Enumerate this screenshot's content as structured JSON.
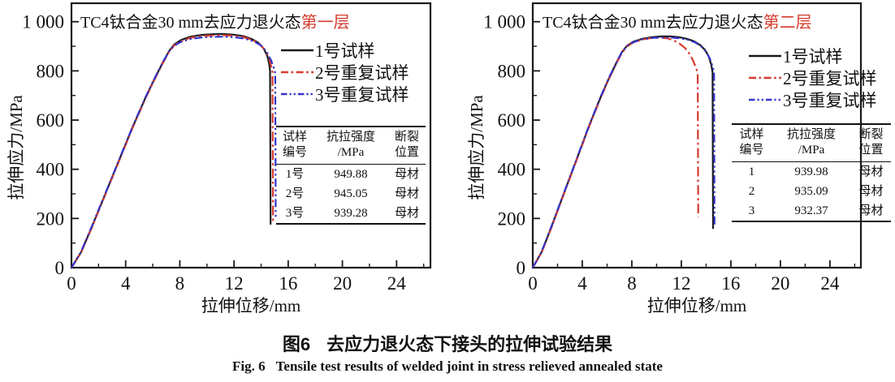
{
  "figure": {
    "caption_cn": {
      "label": "图6",
      "text": "去应力退火态下接头的拉伸试验结果"
    },
    "caption_en": {
      "label": "Fig. 6",
      "text": "Tensile test results of welded joint in stress relieved annealed state"
    }
  },
  "colors": {
    "black": "#1a1a1a",
    "red": "#d43a2e",
    "blue": "#3434cb",
    "frame": "#1a1a1a",
    "title_highlight": "#d43a2e"
  },
  "chart_data": [
    {
      "type": "line",
      "title_main": "TC4钛合金30 mm去应力退火态",
      "title_highlight": "第一层",
      "xlabel": "拉伸位移/mm",
      "ylabel": "拉伸应力/MPa",
      "xlim": [
        0,
        26.5
      ],
      "ylim": [
        0,
        1075
      ],
      "grid": false,
      "legend_position": "upper-right-inside",
      "xticks": {
        "values": [
          0,
          4,
          8,
          12,
          16,
          20,
          24
        ],
        "labels": [
          "0",
          "4",
          "8",
          "12",
          "16",
          "20",
          "24"
        ],
        "minor": [
          2,
          6,
          10,
          14,
          18,
          22,
          26
        ]
      },
      "yticks": {
        "values": [
          0,
          200,
          400,
          600,
          800,
          1000
        ],
        "labels": [
          "0",
          "200",
          "400",
          "600",
          "800",
          "1 000"
        ],
        "minor": [
          100,
          300,
          500,
          700,
          900
        ]
      },
      "series": [
        {
          "name": "1号试样",
          "color_key": "black",
          "dash": "solid",
          "points": [
            [
              0,
              0
            ],
            [
              0.7,
              62
            ],
            [
              1.5,
              165
            ],
            [
              2.5,
              300
            ],
            [
              3.5,
              435
            ],
            [
              4.5,
              570
            ],
            [
              5.5,
              695
            ],
            [
              6.2,
              775
            ],
            [
              6.8,
              840
            ],
            [
              7.2,
              880
            ],
            [
              7.6,
              908
            ],
            [
              8.1,
              926
            ],
            [
              8.8,
              939
            ],
            [
              9.6,
              946
            ],
            [
              10.4,
              949
            ],
            [
              11.2,
              950
            ],
            [
              12,
              947
            ],
            [
              12.7,
              941
            ],
            [
              13.3,
              930
            ],
            [
              13.8,
              914
            ],
            [
              14.2,
              890
            ],
            [
              14.45,
              862
            ],
            [
              14.6,
              828
            ],
            [
              14.66,
              800
            ],
            [
              14.7,
              175
            ]
          ]
        },
        {
          "name": "2号重复试样",
          "color_key": "red",
          "dash": "dashdot",
          "points": [
            [
              0,
              0
            ],
            [
              0.7,
              60
            ],
            [
              1.5,
              162
            ],
            [
              2.5,
              297
            ],
            [
              3.5,
              432
            ],
            [
              4.5,
              567
            ],
            [
              5.5,
              692
            ],
            [
              6.2,
              772
            ],
            [
              6.8,
              837
            ],
            [
              7.2,
              877
            ],
            [
              7.6,
              905
            ],
            [
              8.1,
              922
            ],
            [
              8.8,
              935
            ],
            [
              9.6,
              942
            ],
            [
              10.4,
              944
            ],
            [
              11.2,
              945
            ],
            [
              12,
              943
            ],
            [
              12.7,
              937
            ],
            [
              13.4,
              925
            ],
            [
              13.9,
              908
            ],
            [
              14.3,
              884
            ],
            [
              14.6,
              850
            ],
            [
              14.78,
              810
            ],
            [
              14.84,
              795
            ],
            [
              14.88,
              188
            ]
          ]
        },
        {
          "name": "3号重复试样",
          "color_key": "blue",
          "dash": "dashdotdot",
          "points": [
            [
              0,
              0
            ],
            [
              0.7,
              64
            ],
            [
              1.5,
              168
            ],
            [
              2.5,
              302
            ],
            [
              3.5,
              437
            ],
            [
              4.5,
              572
            ],
            [
              5.5,
              697
            ],
            [
              6.2,
              777
            ],
            [
              6.8,
              841
            ],
            [
              7.2,
              879
            ],
            [
              7.6,
              903
            ],
            [
              8.1,
              918
            ],
            [
              8.8,
              930
            ],
            [
              9.6,
              936
            ],
            [
              10.4,
              938
            ],
            [
              11.2,
              939
            ],
            [
              12,
              937
            ],
            [
              12.8,
              931
            ],
            [
              13.5,
              919
            ],
            [
              14,
              903
            ],
            [
              14.4,
              878
            ],
            [
              14.75,
              842
            ],
            [
              14.98,
              805
            ],
            [
              15.04,
              790
            ],
            [
              15.08,
              196
            ]
          ]
        }
      ],
      "table": {
        "headers": [
          [
            "试样",
            "编号"
          ],
          [
            "抗拉强度",
            "/MPa"
          ],
          [
            "断裂",
            "位置"
          ]
        ],
        "rows": [
          [
            "1号",
            "949.88",
            "母材"
          ],
          [
            "2号",
            "945.05",
            "母材"
          ],
          [
            "3号",
            "939.28",
            "母材"
          ]
        ]
      }
    },
    {
      "type": "line",
      "title_main": "TC4钛合金30 mm去应力退火态",
      "title_highlight": "第二层",
      "xlabel": "拉伸位移/mm",
      "ylabel": "拉伸应力/MPa",
      "xlim": [
        0,
        26.5
      ],
      "ylim": [
        0,
        1075
      ],
      "grid": false,
      "legend_position": "upper-right-inside",
      "xticks": {
        "values": [
          0,
          4,
          8,
          12,
          16,
          20,
          24
        ],
        "labels": [
          "0",
          "4",
          "8",
          "12",
          "16",
          "20",
          "24"
        ],
        "minor": [
          2,
          6,
          10,
          14,
          18,
          22,
          26
        ]
      },
      "yticks": {
        "values": [
          0,
          200,
          400,
          600,
          800,
          1000
        ],
        "labels": [
          "0",
          "200",
          "400",
          "600",
          "800",
          "1 000"
        ],
        "minor": [
          100,
          300,
          500,
          700,
          900
        ]
      },
      "series": [
        {
          "name": "1号试样",
          "color_key": "black",
          "dash": "solid",
          "points": [
            [
              0,
              0
            ],
            [
              0.7,
              62
            ],
            [
              1.5,
              165
            ],
            [
              2.5,
              300
            ],
            [
              3.5,
              435
            ],
            [
              4.5,
              570
            ],
            [
              5.5,
              695
            ],
            [
              6.2,
              775
            ],
            [
              6.8,
              838
            ],
            [
              7.2,
              876
            ],
            [
              7.6,
              902
            ],
            [
              8.1,
              918
            ],
            [
              8.8,
              930
            ],
            [
              9.6,
              937
            ],
            [
              10.4,
              940
            ],
            [
              11.1,
              940
            ],
            [
              11.8,
              937
            ],
            [
              12.4,
              931
            ],
            [
              13,
              921
            ],
            [
              13.5,
              906
            ],
            [
              13.9,
              886
            ],
            [
              14.2,
              860
            ],
            [
              14.42,
              825
            ],
            [
              14.52,
              793
            ],
            [
              14.56,
              158
            ]
          ]
        },
        {
          "name": "2号重复试样",
          "color_key": "red",
          "dash": "dashdot",
          "points": [
            [
              0,
              0
            ],
            [
              0.7,
              60
            ],
            [
              1.5,
              162
            ],
            [
              2.5,
              297
            ],
            [
              3.5,
              432
            ],
            [
              4.5,
              567
            ],
            [
              5.5,
              692
            ],
            [
              6.2,
              772
            ],
            [
              6.8,
              835
            ],
            [
              7.2,
              873
            ],
            [
              7.6,
              899
            ],
            [
              8.1,
              915
            ],
            [
              8.8,
              927
            ],
            [
              9.5,
              933
            ],
            [
              10.2,
              935
            ],
            [
              10.8,
              933
            ],
            [
              11.3,
              926
            ],
            [
              11.8,
              913
            ],
            [
              12.3,
              893
            ],
            [
              12.7,
              867
            ],
            [
              13,
              836
            ],
            [
              13.25,
              803
            ],
            [
              13.32,
              790
            ],
            [
              13.36,
              206
            ]
          ]
        },
        {
          "name": "3号重复试样",
          "color_key": "blue",
          "dash": "dashdotdot",
          "points": [
            [
              0,
              0
            ],
            [
              0.7,
              64
            ],
            [
              1.5,
              168
            ],
            [
              2.5,
              302
            ],
            [
              3.5,
              437
            ],
            [
              4.5,
              572
            ],
            [
              5.5,
              697
            ],
            [
              6.2,
              777
            ],
            [
              6.8,
              839
            ],
            [
              7.2,
              877
            ],
            [
              7.6,
              901
            ],
            [
              8.1,
              916
            ],
            [
              8.8,
              928
            ],
            [
              9.6,
              934
            ],
            [
              10.4,
              936
            ],
            [
              11.1,
              936
            ],
            [
              11.8,
              933
            ],
            [
              12.5,
              927
            ],
            [
              13.1,
              916
            ],
            [
              13.6,
              900
            ],
            [
              14,
              878
            ],
            [
              14.3,
              850
            ],
            [
              14.55,
              815
            ],
            [
              14.64,
              792
            ],
            [
              14.68,
              167
            ]
          ]
        }
      ],
      "table": {
        "headers": [
          [
            "试样",
            "编号"
          ],
          [
            "抗拉强度",
            "/MPa"
          ],
          [
            "断裂",
            "位置"
          ]
        ],
        "rows": [
          [
            "1",
            "939.98",
            "母材"
          ],
          [
            "2",
            "935.09",
            "母材"
          ],
          [
            "3",
            "932.37",
            "母材"
          ]
        ]
      }
    }
  ]
}
